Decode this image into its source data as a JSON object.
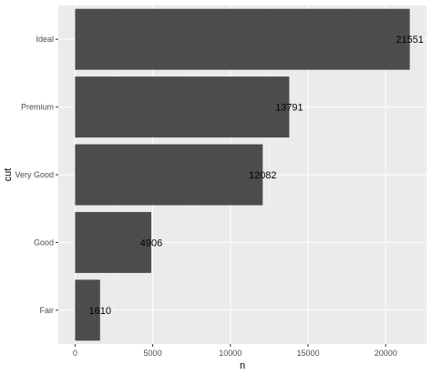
{
  "chart_data": {
    "type": "bar",
    "orientation": "horizontal",
    "categories": [
      "Ideal",
      "Premium",
      "Very Good",
      "Good",
      "Fair"
    ],
    "values": [
      21551,
      13791,
      12082,
      4906,
      1610
    ],
    "data_labels": [
      "21551",
      "13791",
      "12082",
      "4906",
      "1610"
    ],
    "xlabel": "n",
    "ylabel": "cut",
    "xlim": [
      -1077.55,
      22628.55
    ],
    "xticks": [
      0,
      5000,
      10000,
      15000,
      20000
    ],
    "xtick_labels": [
      "0",
      "5000",
      "10000",
      "15000",
      "20000"
    ],
    "grid": true,
    "colors": {
      "panel": "#ebebeb",
      "grid_major": "#ffffff",
      "bar": "#4d4d4d",
      "tick_text": "#4d4d4d",
      "axis_title": "#000000",
      "label_text": "#000000"
    }
  }
}
